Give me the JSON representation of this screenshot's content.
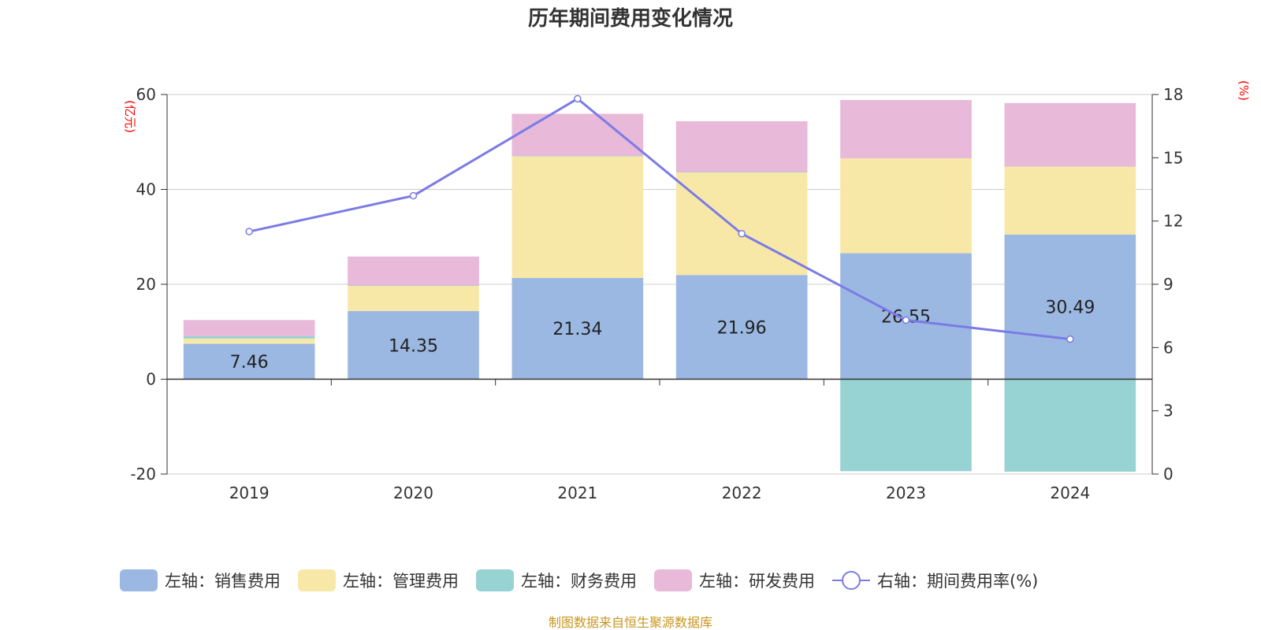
{
  "chart_data": {
    "type": "bar",
    "title": "历年期间费用变化情况",
    "categories": [
      "2019",
      "2020",
      "2021",
      "2022",
      "2023",
      "2024"
    ],
    "left_axis": {
      "unit": "(亿元)",
      "range": [
        -20,
        60
      ],
      "ticks": [
        -20,
        0,
        20,
        40,
        60
      ]
    },
    "right_axis": {
      "unit": "(%)",
      "range": [
        0,
        18
      ],
      "ticks": [
        0,
        3,
        6,
        9,
        12,
        15,
        18
      ]
    },
    "series": [
      {
        "name": "左轴：销售费用",
        "type": "bar",
        "stack": "total",
        "color": "#9bb8e2",
        "values": [
          7.46,
          14.35,
          21.34,
          21.96,
          26.55,
          30.49
        ],
        "labels": [
          "7.46",
          "14.35",
          "21.34",
          "21.96",
          "26.55",
          "30.49"
        ]
      },
      {
        "name": "左轴：管理费用",
        "type": "bar",
        "stack": "total",
        "color": "#f8e8a8",
        "values": [
          1.1,
          5.3,
          25.6,
          21.6,
          20.0,
          14.3
        ]
      },
      {
        "name": "左轴：财务费用",
        "type": "bar",
        "stack": "total",
        "color": "#97d3d3",
        "values": [
          0.5,
          0.1,
          0.1,
          0.1,
          -19.4,
          -19.5
        ]
      },
      {
        "name": "左轴：研发费用",
        "type": "bar",
        "stack": "total",
        "color": "#e8b9d9",
        "values": [
          3.4,
          6.1,
          8.9,
          10.7,
          12.3,
          13.4
        ]
      },
      {
        "name": "右轴：期间费用率(%)",
        "type": "line",
        "axis": "right",
        "color": "#7b7be6",
        "values": [
          11.5,
          13.2,
          17.8,
          11.4,
          7.3,
          6.4
        ]
      }
    ],
    "grid": true,
    "legend": "bottom-center"
  },
  "source_note": "制图数据来自恒生聚源数据库"
}
